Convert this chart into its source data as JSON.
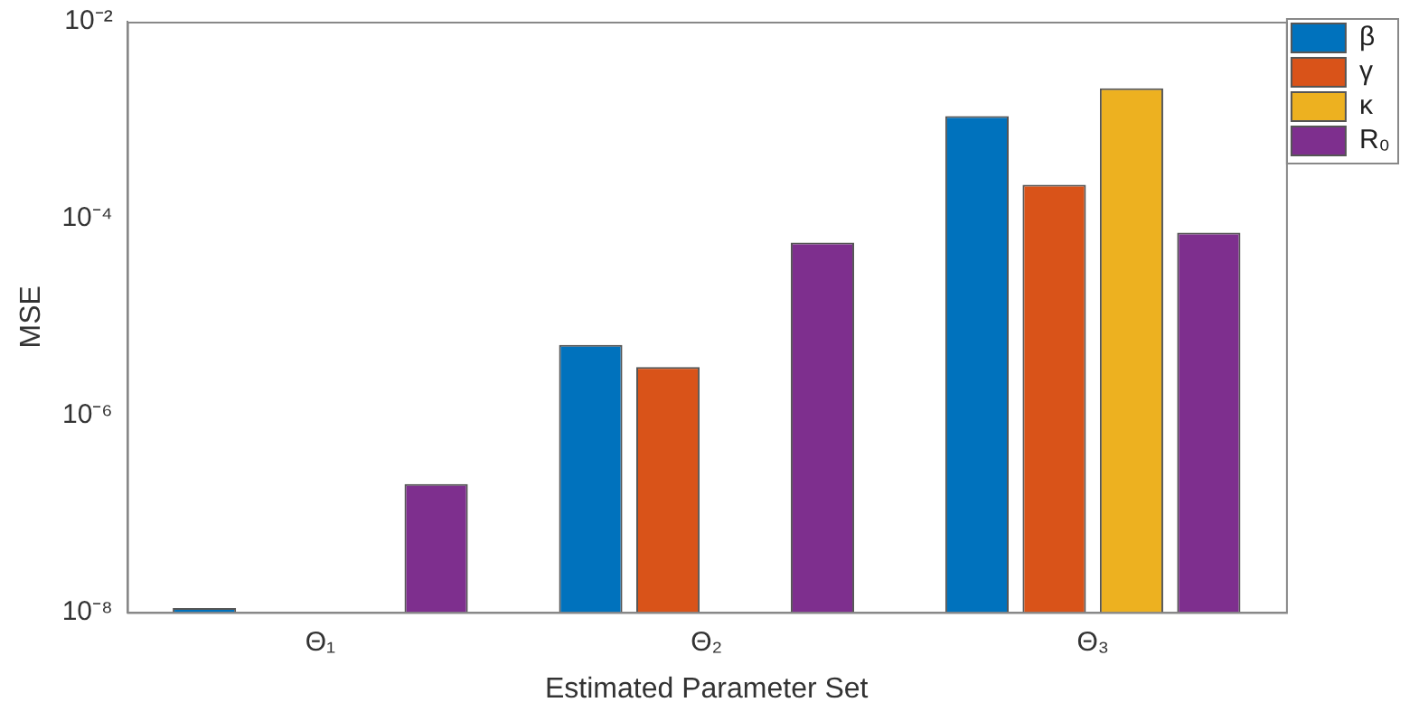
{
  "chart_data": {
    "type": "bar",
    "xlabel": "Estimated Parameter Set",
    "ylabel": "MSE",
    "categories": [
      "Θ₁",
      "Θ₂",
      "Θ₃"
    ],
    "series": [
      {
        "name": "β",
        "color": "#0072bd",
        "values": [
          1.1e-08,
          5.2e-06,
          0.0011
        ]
      },
      {
        "name": "γ",
        "color": "#d95319",
        "values": [
          null,
          3.1e-06,
          0.00022
        ]
      },
      {
        "name": "κ",
        "color": "#edb120",
        "values": [
          null,
          null,
          0.0021
        ]
      },
      {
        "name": "R₀",
        "color": "#7e2f8e",
        "values": [
          2e-07,
          5.7e-05,
          7.2e-05
        ]
      }
    ],
    "log": true,
    "ylim": [
      1e-08,
      0.01
    ],
    "yticks": [
      {
        "value": 1e-08,
        "label": "10⁻⁸"
      },
      {
        "value": 1e-06,
        "label": "10⁻⁶"
      },
      {
        "value": 0.0001,
        "label": "10⁻⁴"
      },
      {
        "value": 0.01,
        "label": "10⁻²"
      }
    ],
    "grid": false,
    "legend": "top right"
  }
}
